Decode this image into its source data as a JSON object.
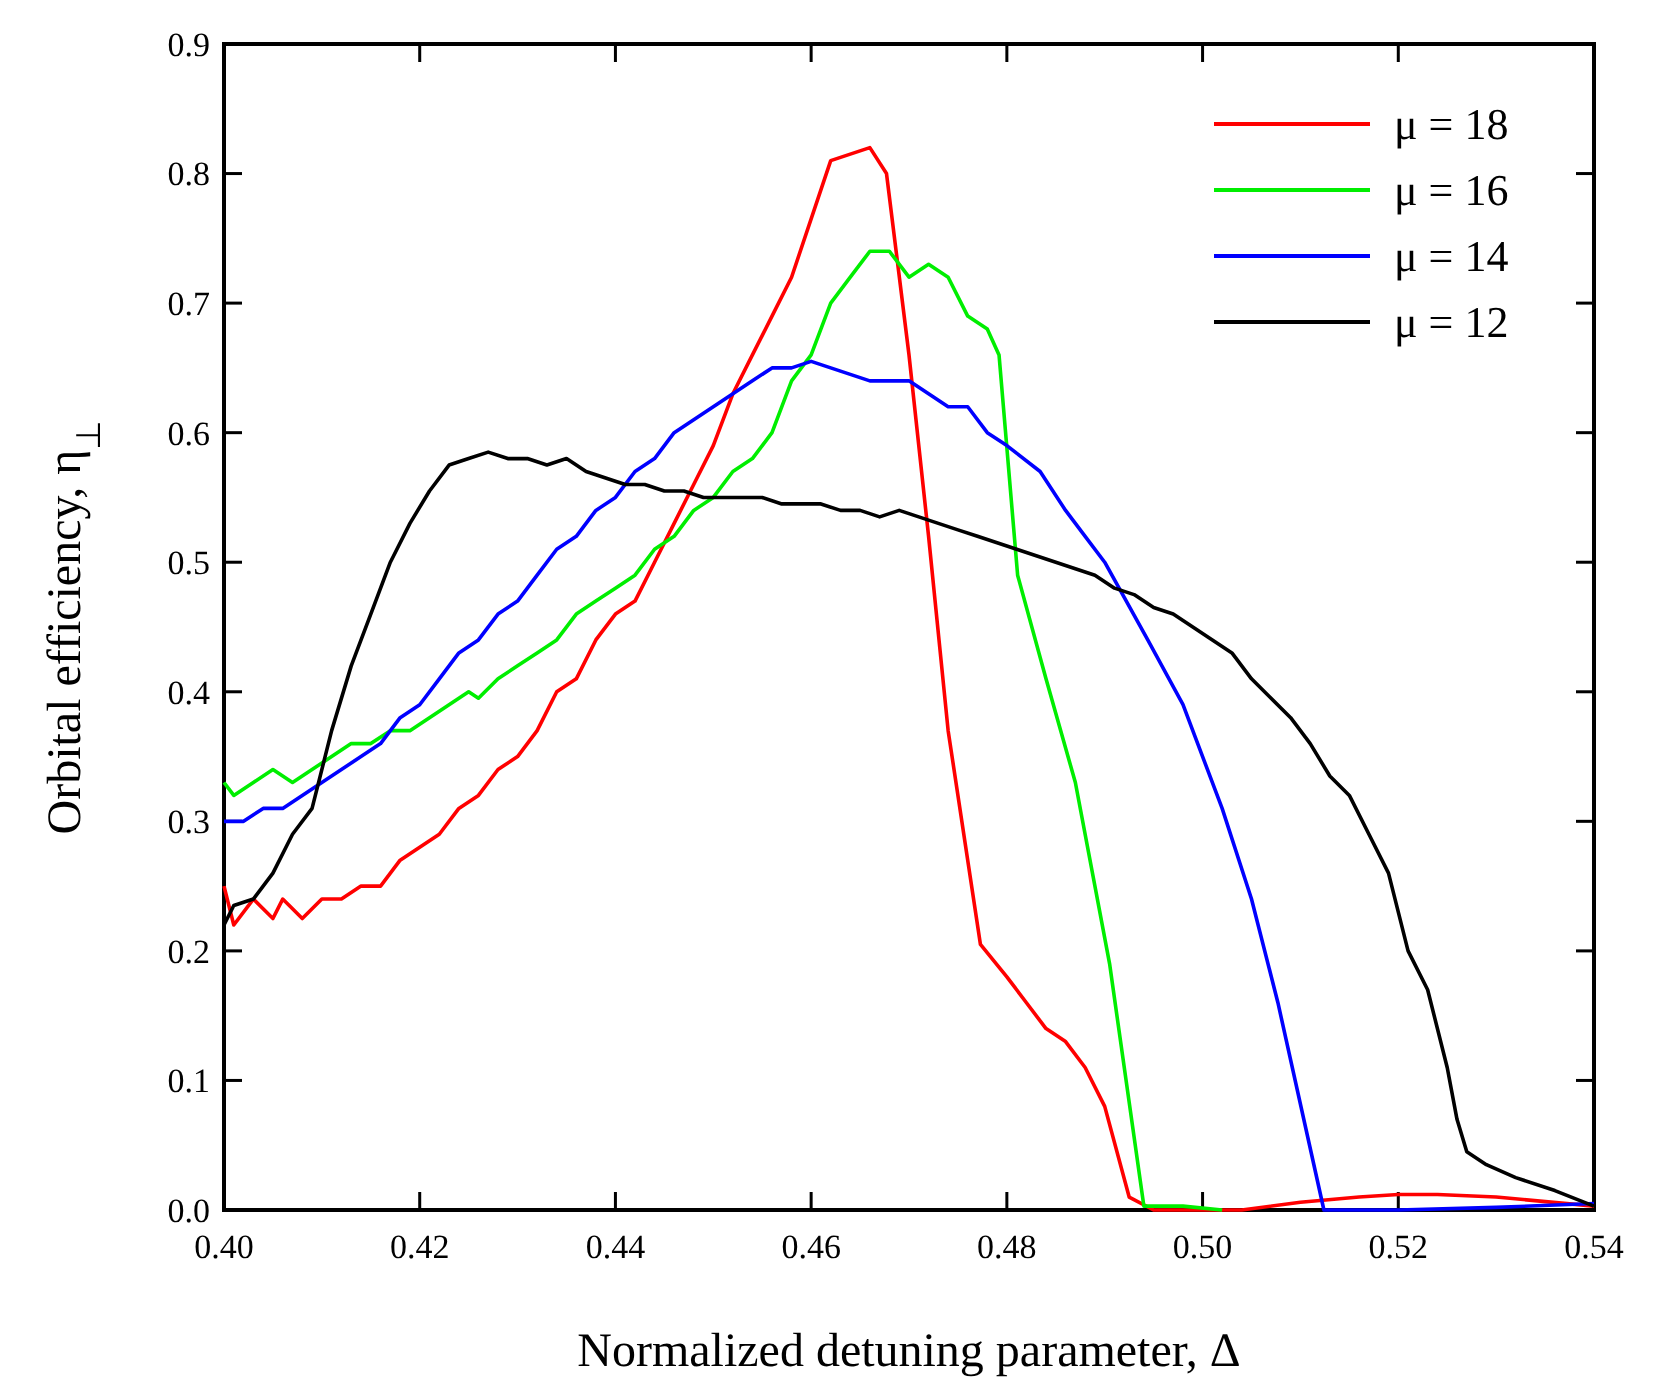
{
  "chart_data": {
    "type": "line",
    "xlabel": "Normalized detuning parameter, Δ",
    "ylabel": "Orbital efficiency, η$_{⊥}$",
    "xlim": [
      0.4,
      0.54
    ],
    "ylim": [
      0,
      0.9
    ],
    "xticks": [
      {
        "value": 0.4,
        "label": "0.40"
      },
      {
        "value": 0.42,
        "label": "0.42"
      },
      {
        "value": 0.44,
        "label": "0.44"
      },
      {
        "value": 0.46,
        "label": "0.46"
      },
      {
        "value": 0.48,
        "label": "0.48"
      },
      {
        "value": 0.5,
        "label": "0.50"
      },
      {
        "value": 0.52,
        "label": "0.52"
      },
      {
        "value": 0.54,
        "label": "0.54"
      }
    ],
    "yticks": [
      {
        "value": 0,
        "label": "0.0"
      },
      0.1,
      0.2,
      0.3,
      0.4,
      0.5,
      0.6,
      0.7,
      0.8,
      0.9
    ],
    "grid": false,
    "legend": "top right",
    "marker": "none",
    "line_style": "solid",
    "series": [
      {
        "name": "μ = 18",
        "color": "#ff0000",
        "x": [
          0.4,
          0.401,
          0.403,
          0.405,
          0.406,
          0.408,
          0.41,
          0.412,
          0.414,
          0.416,
          0.418,
          0.42,
          0.422,
          0.424,
          0.426,
          0.428,
          0.43,
          0.432,
          0.434,
          0.436,
          0.438,
          0.44,
          0.442,
          0.444,
          0.446,
          0.448,
          0.45,
          0.452,
          0.454,
          0.456,
          0.458,
          0.462,
          0.466,
          0.4677,
          0.47,
          0.472,
          0.474,
          0.4773,
          0.48,
          0.482,
          0.484,
          0.486,
          0.488,
          0.49,
          0.4925,
          0.495,
          0.5,
          0.504,
          0.51,
          0.516,
          0.52,
          0.524,
          0.53,
          0.54
        ],
        "values": [
          0.25,
          0.22,
          0.24,
          0.225,
          0.24,
          0.225,
          0.24,
          0.24,
          0.25,
          0.25,
          0.27,
          0.28,
          0.29,
          0.31,
          0.32,
          0.34,
          0.35,
          0.37,
          0.4,
          0.41,
          0.44,
          0.46,
          0.47,
          0.5,
          0.53,
          0.56,
          0.59,
          0.63,
          0.66,
          0.69,
          0.72,
          0.81,
          0.82,
          0.8,
          0.66,
          0.52,
          0.37,
          0.205,
          0.18,
          0.16,
          0.14,
          0.13,
          0.11,
          0.08,
          0.01,
          0.0,
          0.0,
          0.0,
          0.006,
          0.01,
          0.012,
          0.012,
          0.01,
          0.003
        ]
      },
      {
        "name": "μ = 16",
        "color": "#00ee00",
        "x": [
          0.4,
          0.401,
          0.403,
          0.405,
          0.407,
          0.409,
          0.411,
          0.413,
          0.415,
          0.417,
          0.419,
          0.421,
          0.423,
          0.425,
          0.426,
          0.428,
          0.43,
          0.432,
          0.434,
          0.436,
          0.438,
          0.44,
          0.442,
          0.444,
          0.446,
          0.448,
          0.45,
          0.452,
          0.454,
          0.456,
          0.458,
          0.46,
          0.462,
          0.464,
          0.466,
          0.468,
          0.47,
          0.472,
          0.474,
          0.476,
          0.478,
          0.4792,
          0.4811,
          0.484,
          0.487,
          0.4905,
          0.494,
          0.498,
          0.502
        ],
        "values": [
          0.33,
          0.32,
          0.33,
          0.34,
          0.33,
          0.34,
          0.35,
          0.36,
          0.36,
          0.37,
          0.37,
          0.38,
          0.39,
          0.4,
          0.395,
          0.41,
          0.42,
          0.43,
          0.44,
          0.46,
          0.47,
          0.48,
          0.49,
          0.51,
          0.52,
          0.54,
          0.55,
          0.57,
          0.58,
          0.6,
          0.64,
          0.66,
          0.7,
          0.72,
          0.74,
          0.74,
          0.72,
          0.73,
          0.72,
          0.69,
          0.68,
          0.66,
          0.49,
          0.41,
          0.33,
          0.19,
          0.003,
          0.003,
          0.0
        ]
      },
      {
        "name": "μ = 14",
        "color": "#0000ff",
        "x": [
          0.4,
          0.402,
          0.404,
          0.406,
          0.408,
          0.41,
          0.412,
          0.414,
          0.416,
          0.418,
          0.42,
          0.422,
          0.424,
          0.426,
          0.428,
          0.43,
          0.432,
          0.434,
          0.436,
          0.438,
          0.44,
          0.442,
          0.444,
          0.446,
          0.448,
          0.45,
          0.452,
          0.454,
          0.456,
          0.458,
          0.46,
          0.462,
          0.464,
          0.466,
          0.468,
          0.47,
          0.472,
          0.474,
          0.476,
          0.478,
          0.48,
          0.4834,
          0.486,
          0.488,
          0.49,
          0.4944,
          0.498,
          0.502,
          0.505,
          0.5077,
          0.5124,
          0.52,
          0.53,
          0.54
        ],
        "values": [
          0.3,
          0.3,
          0.31,
          0.31,
          0.32,
          0.33,
          0.34,
          0.35,
          0.36,
          0.38,
          0.39,
          0.41,
          0.43,
          0.44,
          0.46,
          0.47,
          0.49,
          0.51,
          0.52,
          0.54,
          0.55,
          0.57,
          0.58,
          0.6,
          0.61,
          0.62,
          0.63,
          0.64,
          0.65,
          0.65,
          0.655,
          0.65,
          0.645,
          0.64,
          0.64,
          0.64,
          0.63,
          0.62,
          0.62,
          0.6,
          0.59,
          0.57,
          0.54,
          0.52,
          0.5,
          0.44,
          0.39,
          0.31,
          0.24,
          0.16,
          0.0,
          0.0,
          0.002,
          0.005
        ]
      },
      {
        "name": "μ = 12",
        "color": "#000000",
        "x": [
          0.4,
          0.401,
          0.403,
          0.405,
          0.407,
          0.409,
          0.411,
          0.413,
          0.415,
          0.417,
          0.419,
          0.421,
          0.423,
          0.425,
          0.427,
          0.429,
          0.431,
          0.433,
          0.435,
          0.437,
          0.439,
          0.441,
          0.443,
          0.445,
          0.447,
          0.449,
          0.451,
          0.453,
          0.455,
          0.457,
          0.459,
          0.461,
          0.463,
          0.465,
          0.467,
          0.469,
          0.471,
          0.473,
          0.475,
          0.477,
          0.479,
          0.481,
          0.483,
          0.485,
          0.487,
          0.489,
          0.491,
          0.493,
          0.495,
          0.497,
          0.499,
          0.501,
          0.503,
          0.505,
          0.507,
          0.509,
          0.511,
          0.513,
          0.515,
          0.517,
          0.519,
          0.521,
          0.523,
          0.525,
          0.526,
          0.527,
          0.529,
          0.532,
          0.536,
          0.54
        ],
        "values": [
          0.22,
          0.235,
          0.24,
          0.26,
          0.29,
          0.31,
          0.37,
          0.42,
          0.46,
          0.5,
          0.53,
          0.555,
          0.575,
          0.58,
          0.585,
          0.58,
          0.58,
          0.575,
          0.58,
          0.57,
          0.565,
          0.56,
          0.56,
          0.555,
          0.555,
          0.55,
          0.55,
          0.55,
          0.55,
          0.545,
          0.545,
          0.545,
          0.54,
          0.54,
          0.535,
          0.54,
          0.535,
          0.53,
          0.525,
          0.52,
          0.515,
          0.51,
          0.505,
          0.5,
          0.495,
          0.49,
          0.48,
          0.475,
          0.465,
          0.46,
          0.45,
          0.44,
          0.43,
          0.41,
          0.395,
          0.38,
          0.36,
          0.335,
          0.32,
          0.29,
          0.26,
          0.2,
          0.17,
          0.11,
          0.07,
          0.045,
          0.035,
          0.025,
          0.015,
          0.003
        ]
      }
    ]
  }
}
